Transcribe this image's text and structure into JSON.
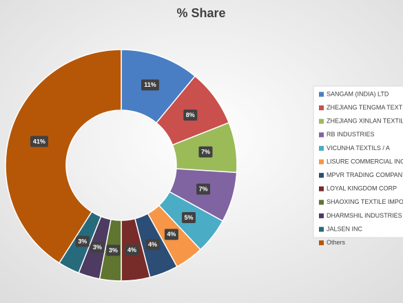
{
  "chart_data": {
    "type": "donut",
    "title": "% Share",
    "categories": [
      "SANGAM (INDIA) LTD",
      "ZHEJIANG TENGMA TEXTILE (",
      "ZHEJIANG XINLAN TEXTILE CO",
      "RB INDUSTRIES",
      "VICUNHA TEXTILS / A",
      "LISURE COMMERCIAL INC",
      "MPVR TRADING COMPANY S",
      "LOYAL KINGDOM CORP",
      "SHAOXING TEXTILE IMPORT A",
      "DHARMSHIL INDUSTRIES PVT",
      "JALSEN INC",
      "Others"
    ],
    "values": [
      11,
      8,
      7,
      7,
      5,
      4,
      4,
      4,
      3,
      3,
      3,
      41
    ],
    "value_labels": [
      "11%",
      "8%",
      "7%",
      "7%",
      "5%",
      "4%",
      "4%",
      "4%",
      "3%",
      "3%",
      "3%",
      "41%"
    ],
    "colors": [
      "#4a7ec4",
      "#c9504c",
      "#9bbb59",
      "#8064a2",
      "#4bacc6",
      "#f79646",
      "#2c4d75",
      "#772c2a",
      "#5f7530",
      "#4d3b62",
      "#276a7c",
      "#b65708"
    ],
    "legend": "right"
  }
}
